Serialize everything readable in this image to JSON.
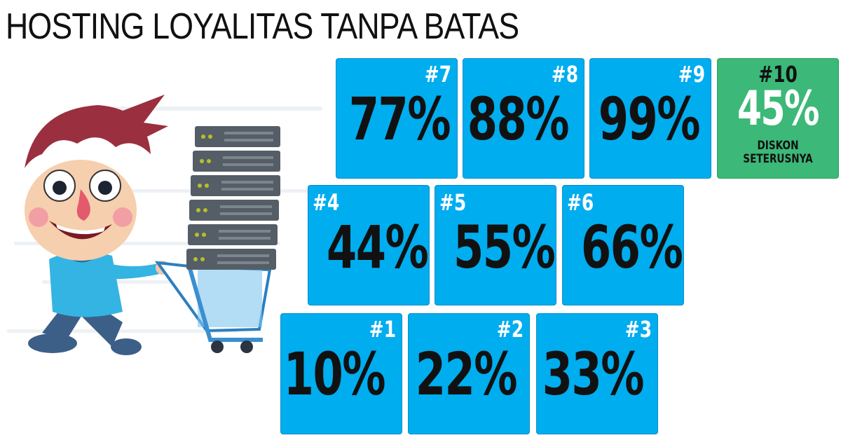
{
  "title": "HOSTING LOYALITAS TANPA BATAS",
  "tiles": [
    {
      "label": "#1",
      "value": "10%"
    },
    {
      "label": "#2",
      "value": "22%"
    },
    {
      "label": "#3",
      "value": "33%"
    },
    {
      "label": "#4",
      "value": "44%"
    },
    {
      "label": "#5",
      "value": "55%"
    },
    {
      "label": "#6",
      "value": "66%"
    },
    {
      "label": "#7",
      "value": "77%"
    },
    {
      "label": "#8",
      "value": "88%"
    },
    {
      "label": "#9",
      "value": "99%"
    },
    {
      "label": "#10",
      "value": "45%",
      "sub1": "DISKON",
      "sub2": "SETERUSNYA"
    }
  ],
  "colors": {
    "tile_blue": "#00adef",
    "tile_green": "#3cb878"
  },
  "illustration": "cartoon-man-pushing-cart-with-servers"
}
